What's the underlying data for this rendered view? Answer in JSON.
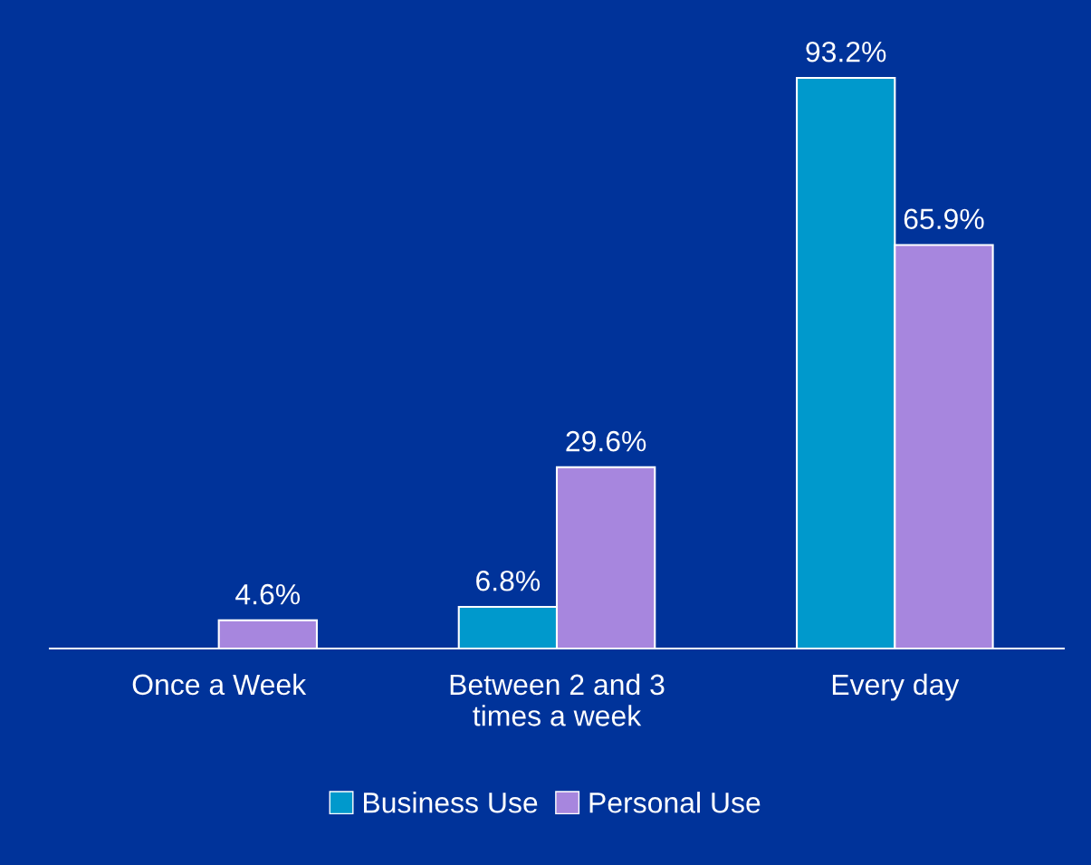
{
  "chart_data": {
    "type": "bar",
    "categories": [
      "Once a Week",
      "Between 2 and 3\ntimes a week",
      "Every day"
    ],
    "series": [
      {
        "name": "Business Use",
        "color": "#0099cc",
        "values": [
          null,
          6.8,
          93.2
        ],
        "value_labels": [
          null,
          "6.8%",
          "93.2%"
        ]
      },
      {
        "name": "Personal Use",
        "color": "#a786de",
        "values": [
          4.6,
          29.6,
          65.9
        ],
        "value_labels": [
          "4.6%",
          "29.6%",
          "65.9%"
        ]
      }
    ],
    "tick_labels": "x",
    "legend": "bottom"
  }
}
